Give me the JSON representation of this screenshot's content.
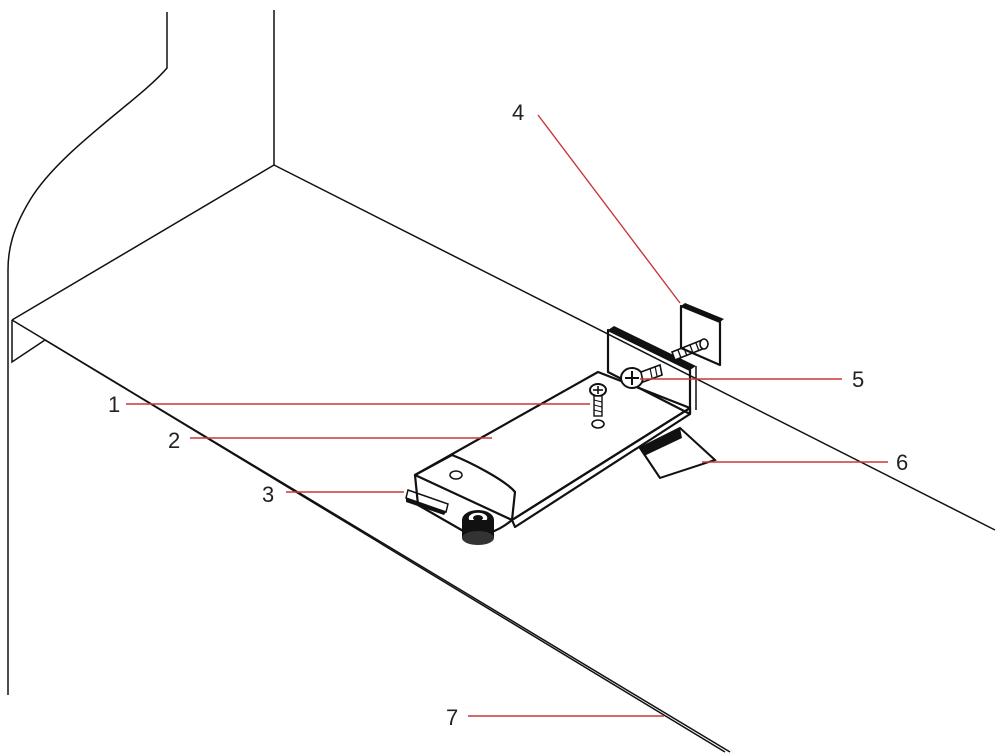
{
  "colors": {
    "leader_line": "#c8383a",
    "line_art": "#111111",
    "background": "#ffffff"
  },
  "callouts": [
    {
      "id": "1",
      "label": "1"
    },
    {
      "id": "2",
      "label": "2"
    },
    {
      "id": "3",
      "label": "3"
    },
    {
      "id": "4",
      "label": "4"
    },
    {
      "id": "5",
      "label": "5"
    },
    {
      "id": "6",
      "label": "6"
    },
    {
      "id": "7",
      "label": "7"
    }
  ]
}
